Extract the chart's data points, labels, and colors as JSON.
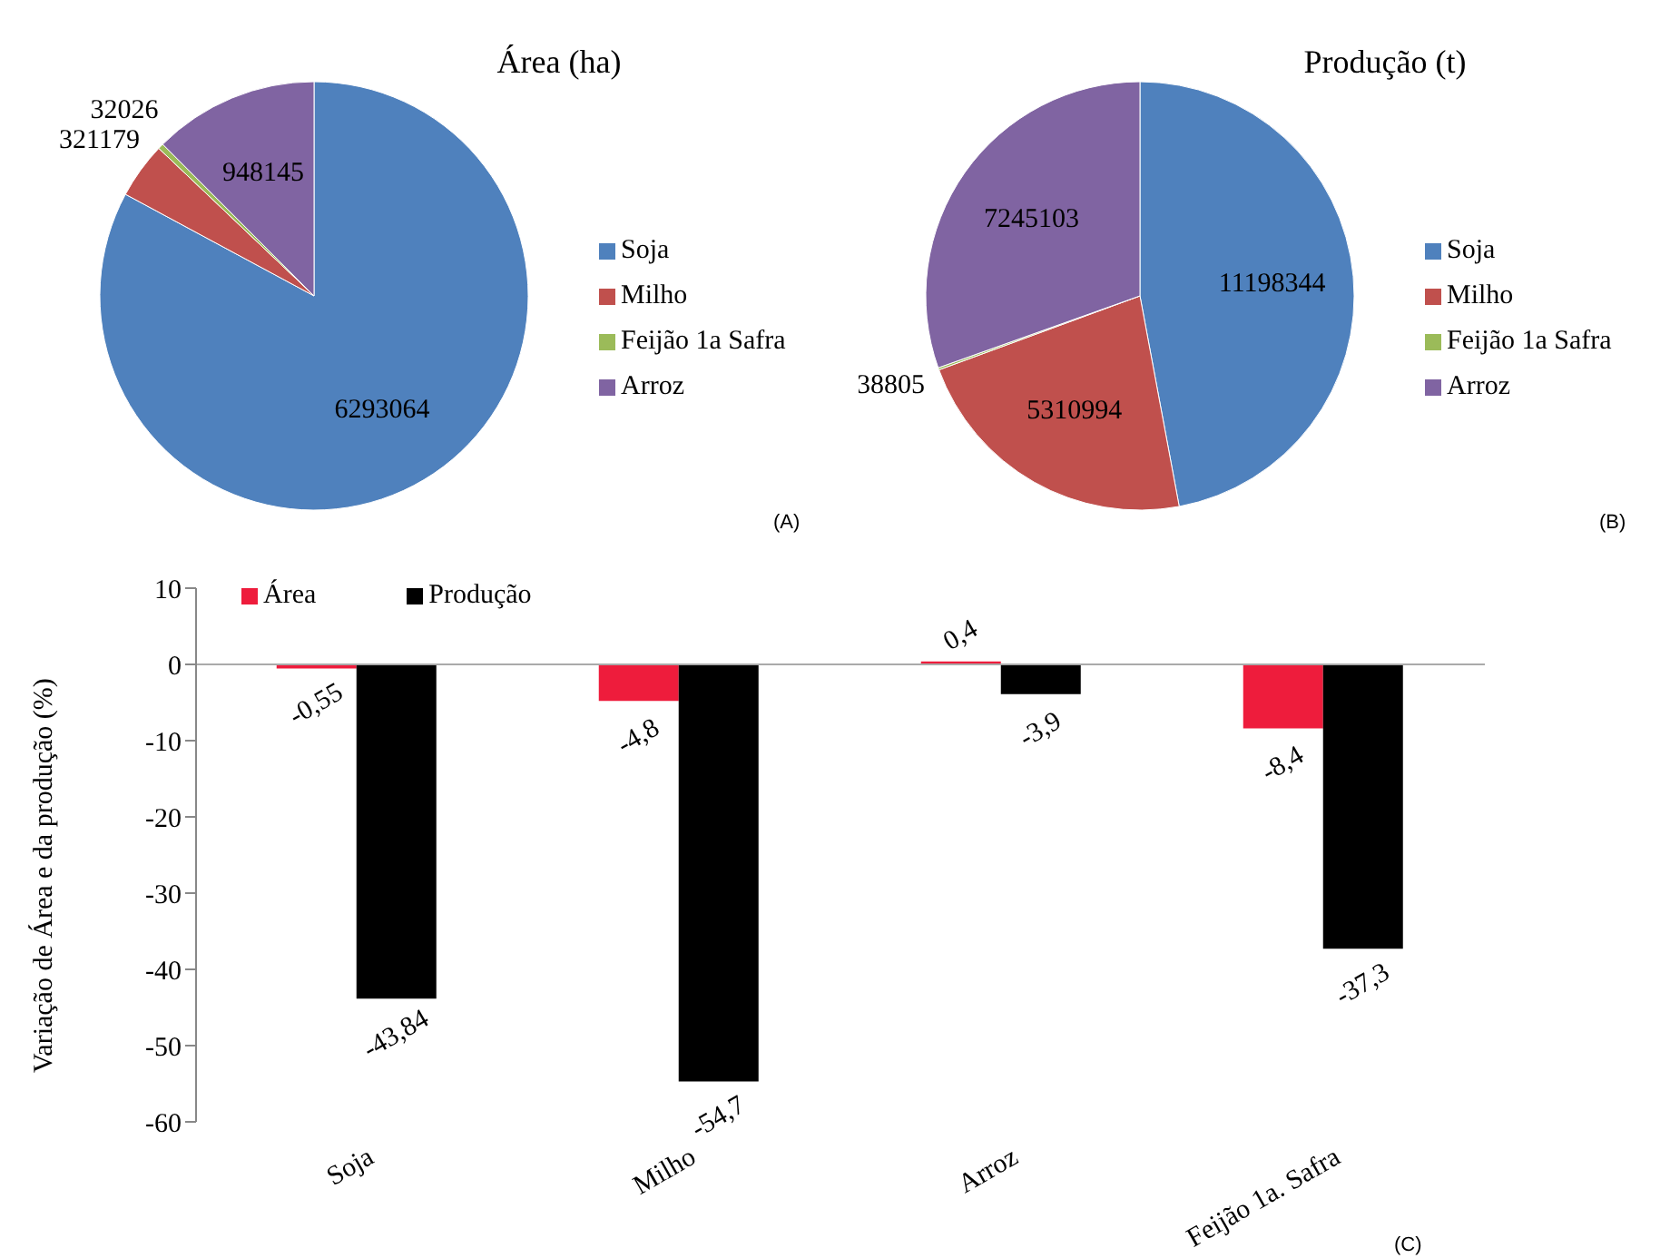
{
  "chart_data": [
    {
      "type": "pie",
      "title": "Área (ha)",
      "categories": [
        "Soja",
        "Milho",
        "Feijão 1a Safra",
        "Arroz"
      ],
      "values": [
        6293064,
        321179,
        32026,
        948145
      ],
      "colors": [
        "#4f81bd",
        "#c0504d",
        "#9bbb59",
        "#8064a2"
      ],
      "data_labels": true,
      "legend": "right",
      "annotations": [
        "(A)"
      ]
    },
    {
      "type": "pie",
      "title": "Produção (t)",
      "categories": [
        "Soja",
        "Milho",
        "Feijão 1a Safra",
        "Arroz"
      ],
      "values": [
        11198344,
        5310994,
        38805,
        7245103
      ],
      "colors": [
        "#4f81bd",
        "#c0504d",
        "#9bbb59",
        "#8064a2"
      ],
      "data_labels": true,
      "legend": "right",
      "annotations": [
        "(B)"
      ]
    },
    {
      "type": "bar",
      "ylabel": "Variação de Área e da produção (%)",
      "categories": [
        "Soja",
        "Milho",
        "Arroz",
        "Feijão 1a. Safra"
      ],
      "series": [
        {
          "name": "Área",
          "color": "#ee1c3c",
          "values": [
            -0.55,
            -4.8,
            0.4,
            -8.4
          ],
          "value_labels": [
            "-0,55",
            "-4,8",
            "0,4",
            "-8,4"
          ]
        },
        {
          "name": "Produção",
          "color": "#000000",
          "values": [
            -43.84,
            -54.7,
            -3.9,
            -37.3
          ],
          "value_labels": [
            "-43,84",
            "-54,7",
            "-3,9",
            "-37,3"
          ]
        }
      ],
      "ref_lines": [
        {
          "axis": "y",
          "value": 0,
          "color": "#aaaaaa"
        }
      ],
      "ylim": [
        -60,
        10
      ],
      "yticks": [
        -60,
        -50,
        -40,
        -30,
        -20,
        -10,
        0,
        10
      ],
      "legend": "top left",
      "annotations": [
        "(C)"
      ]
    }
  ]
}
